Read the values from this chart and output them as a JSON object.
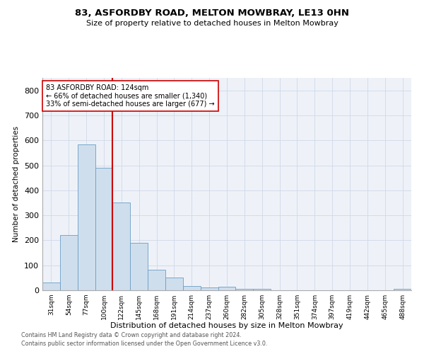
{
  "title1": "83, ASFORDBY ROAD, MELTON MOWBRAY, LE13 0HN",
  "title2": "Size of property relative to detached houses in Melton Mowbray",
  "xlabel": "Distribution of detached houses by size in Melton Mowbray",
  "ylabel": "Number of detached properties",
  "bin_labels": [
    "31sqm",
    "54sqm",
    "77sqm",
    "100sqm",
    "122sqm",
    "145sqm",
    "168sqm",
    "191sqm",
    "214sqm",
    "237sqm",
    "260sqm",
    "282sqm",
    "305sqm",
    "328sqm",
    "351sqm",
    "374sqm",
    "397sqm",
    "419sqm",
    "442sqm",
    "465sqm",
    "488sqm"
  ],
  "bar_heights": [
    30,
    220,
    585,
    490,
    350,
    190,
    82,
    52,
    17,
    12,
    13,
    7,
    5,
    0,
    0,
    0,
    0,
    0,
    0,
    0,
    5
  ],
  "bar_color": "#cfdeed",
  "bar_edge_color": "#6a9ec5",
  "grid_color": "#d0d8e8",
  "bg_color": "#eef2f8",
  "vline_color": "#cc0000",
  "vline_x_index": 3.5,
  "annotation_text": "83 ASFORDBY ROAD: 124sqm\n← 66% of detached houses are smaller (1,340)\n33% of semi-detached houses are larger (677) →",
  "annotation_box_color": "#ffffff",
  "annotation_box_edgecolor": "#cc0000",
  "footer1": "Contains HM Land Registry data © Crown copyright and database right 2024.",
  "footer2": "Contains public sector information licensed under the Open Government Licence v3.0.",
  "ylim": [
    0,
    850
  ],
  "yticks": [
    0,
    100,
    200,
    300,
    400,
    500,
    600,
    700,
    800
  ]
}
